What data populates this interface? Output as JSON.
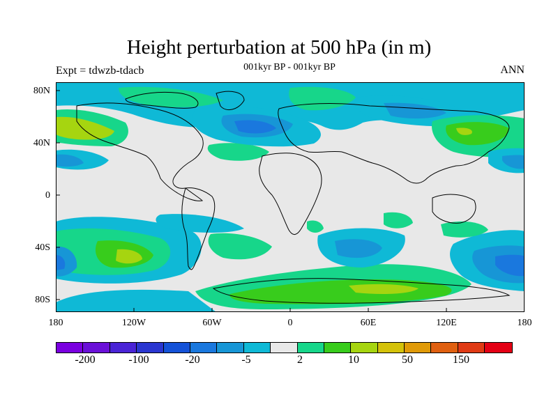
{
  "title": "Height perturbation at 500 hPa (in m)",
  "subtitle": "001kyr BP - 001kyr BP",
  "left_label": "Expt = tdwzb-tdacb",
  "right_label": "ANN",
  "lat_ticks": [
    "80N",
    "40N",
    "0",
    "40S",
    "80S"
  ],
  "lon_ticks": [
    "180",
    "120W",
    "60W",
    "0",
    "60E",
    "120E",
    "180"
  ],
  "colorbar": {
    "colors": [
      "#7a00e0",
      "#6a10d8",
      "#4a24d6",
      "#2a36d0",
      "#1452d8",
      "#1a78de",
      "#1796d6",
      "#0fb9d6",
      "#e8e8e8",
      "#17d68a",
      "#38cc1c",
      "#a6d510",
      "#d4c20a",
      "#e09a08",
      "#e06010",
      "#e03a14",
      "#e40014"
    ],
    "labels": [
      "-200",
      "-100",
      "-20",
      "-5",
      "2",
      "10",
      "50",
      "150"
    ]
  }
}
